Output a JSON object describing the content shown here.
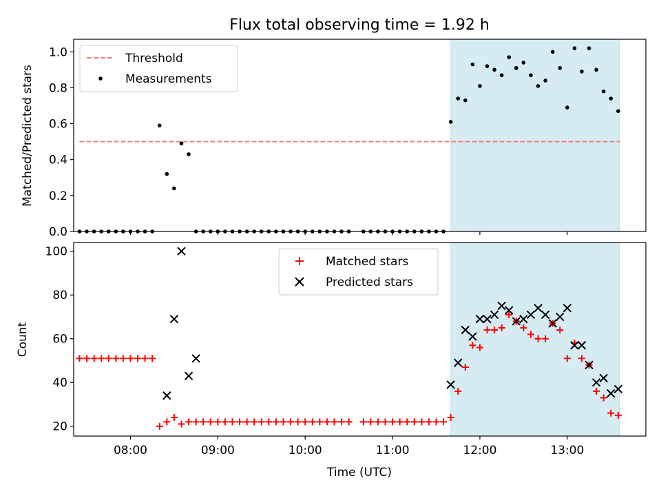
{
  "figure": {
    "title": "Flux total observing time = 1.92 h",
    "xlabel": "Time (UTC)"
  },
  "colors": {
    "highlight": "#add8e6",
    "threshold": "#f08080",
    "measurement": "#000000",
    "matched": "#ff0000",
    "predicted": "#000000"
  },
  "chart_data": [
    {
      "type": "scatter",
      "ylabel": "Matched/Predicted stars",
      "xlim": [
        "07:21",
        "13:54"
      ],
      "ylim": [
        0,
        1.07
      ],
      "x_tick_labels": [
        "08:00",
        "09:00",
        "10:00",
        "11:00",
        "12:00",
        "13:00"
      ],
      "y_ticks": [
        0.0,
        0.2,
        0.4,
        0.6,
        0.8,
        1.0
      ],
      "y_tick_labels": [
        "0.0",
        "0.2",
        "0.4",
        "0.6",
        "0.8",
        "1.0"
      ],
      "legend_position": "top-left",
      "highlight_span": [
        "11:40",
        "13:36"
      ],
      "threshold": {
        "name": "Threshold",
        "y": 0.5,
        "x_range": [
          "07:25",
          "13:36"
        ]
      },
      "series": [
        {
          "name": "Measurements",
          "x": [
            "07:25",
            "07:30",
            "07:35",
            "07:40",
            "07:45",
            "07:50",
            "07:55",
            "08:00",
            "08:05",
            "08:10",
            "08:15",
            "08:20",
            "08:25",
            "08:30",
            "08:35",
            "08:40",
            "08:45",
            "08:50",
            "08:55",
            "09:00",
            "09:05",
            "09:10",
            "09:15",
            "09:20",
            "09:25",
            "09:30",
            "09:35",
            "09:40",
            "09:45",
            "09:50",
            "09:55",
            "10:00",
            "10:05",
            "10:10",
            "10:15",
            "10:20",
            "10:25",
            "10:30",
            "10:40",
            "10:45",
            "10:50",
            "10:55",
            "11:00",
            "11:05",
            "11:10",
            "11:15",
            "11:20",
            "11:25",
            "11:30",
            "11:35",
            "11:40",
            "11:45",
            "11:50",
            "11:55",
            "12:00",
            "12:05",
            "12:10",
            "12:15",
            "12:20",
            "12:25",
            "12:30",
            "12:35",
            "12:40",
            "12:45",
            "12:50",
            "12:55",
            "13:00",
            "13:05",
            "13:10",
            "13:15",
            "13:20",
            "13:25",
            "13:30",
            "13:35"
          ],
          "y": [
            0,
            0,
            0,
            0,
            0,
            0,
            0,
            0,
            0,
            0,
            0,
            0.59,
            0.32,
            0.24,
            0.49,
            0.43,
            0,
            0,
            0,
            0,
            0,
            0,
            0,
            0,
            0,
            0,
            0,
            0,
            0,
            0,
            0,
            0,
            0,
            0,
            0,
            0,
            0,
            0,
            0,
            0,
            0,
            0,
            0,
            0,
            0,
            0,
            0,
            0,
            0,
            0,
            0.61,
            0.74,
            0.73,
            0.93,
            0.81,
            0.92,
            0.9,
            0.87,
            0.97,
            0.91,
            0.94,
            0.87,
            0.81,
            0.84,
            1.0,
            0.91,
            0.69,
            1.02,
            0.89,
            1.02,
            0.9,
            0.78,
            0.74,
            0.67
          ]
        }
      ]
    },
    {
      "type": "scatter",
      "ylabel": "Count",
      "xlabel": "Time (UTC)",
      "xlim": [
        "07:21",
        "13:54"
      ],
      "ylim": [
        15.5,
        104
      ],
      "x_tick_labels": [
        "08:00",
        "09:00",
        "10:00",
        "11:00",
        "12:00",
        "13:00"
      ],
      "y_ticks": [
        20,
        40,
        60,
        80,
        100
      ],
      "y_tick_labels": [
        "20",
        "40",
        "60",
        "80",
        "100"
      ],
      "legend_position": "top-center",
      "highlight_span": [
        "11:40",
        "13:36"
      ],
      "series": [
        {
          "name": "Matched stars",
          "marker": "plus",
          "x": [
            "07:25",
            "07:30",
            "07:35",
            "07:40",
            "07:45",
            "07:50",
            "07:55",
            "08:00",
            "08:05",
            "08:10",
            "08:15",
            "08:20",
            "08:25",
            "08:30",
            "08:35",
            "08:40",
            "08:45",
            "08:50",
            "08:55",
            "09:00",
            "09:05",
            "09:10",
            "09:15",
            "09:20",
            "09:25",
            "09:30",
            "09:35",
            "09:40",
            "09:45",
            "09:50",
            "09:55",
            "10:00",
            "10:05",
            "10:10",
            "10:15",
            "10:20",
            "10:25",
            "10:30",
            "10:40",
            "10:45",
            "10:50",
            "10:55",
            "11:00",
            "11:05",
            "11:10",
            "11:15",
            "11:20",
            "11:25",
            "11:30",
            "11:35",
            "11:40",
            "11:45",
            "11:50",
            "11:55",
            "12:00",
            "12:05",
            "12:10",
            "12:15",
            "12:20",
            "12:25",
            "12:30",
            "12:35",
            "12:40",
            "12:45",
            "12:50",
            "12:55",
            "13:00",
            "13:05",
            "13:10",
            "13:15",
            "13:20",
            "13:25",
            "13:30",
            "13:35"
          ],
          "y": [
            51,
            51,
            51,
            51,
            51,
            51,
            51,
            51,
            51,
            51,
            51,
            20,
            22,
            24,
            21,
            22,
            22,
            22,
            22,
            22,
            22,
            22,
            22,
            22,
            22,
            22,
            22,
            22,
            22,
            22,
            22,
            22,
            22,
            22,
            22,
            22,
            22,
            22,
            22,
            22,
            22,
            22,
            22,
            22,
            22,
            22,
            22,
            22,
            22,
            22,
            24,
            36,
            47,
            57,
            56,
            64,
            64,
            65,
            71,
            68,
            65,
            62,
            60,
            60,
            67,
            64,
            51,
            58,
            51,
            48,
            36,
            33,
            26,
            25
          ]
        },
        {
          "name": "Predicted stars",
          "marker": "x",
          "x": [
            "08:25",
            "08:30",
            "08:35",
            "08:40",
            "08:45",
            "11:40",
            "11:45",
            "11:50",
            "11:55",
            "12:00",
            "12:05",
            "12:10",
            "12:15",
            "12:20",
            "12:25",
            "12:30",
            "12:35",
            "12:40",
            "12:45",
            "12:50",
            "12:55",
            "13:00",
            "13:05",
            "13:10",
            "13:15",
            "13:20",
            "13:25",
            "13:30",
            "13:35"
          ],
          "y": [
            34,
            69,
            100,
            43,
            51,
            39,
            49,
            64,
            61,
            69,
            69,
            71,
            75,
            73,
            68,
            69,
            71,
            74,
            71,
            67,
            70,
            74,
            57,
            57,
            48,
            40,
            42,
            35,
            37
          ]
        }
      ]
    }
  ]
}
